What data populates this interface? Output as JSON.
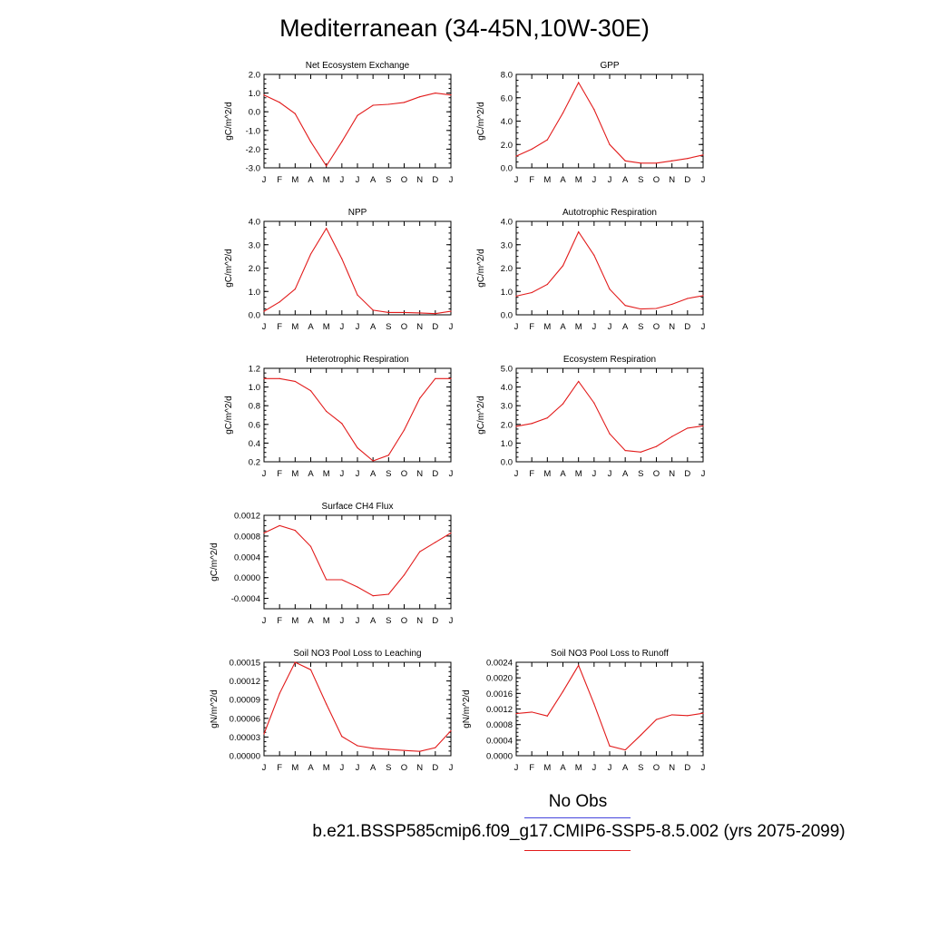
{
  "title": "Mediterranean (34-45N,10W-30E)",
  "legend": {
    "obs_label": "No Obs",
    "obs_color": "#4444dd",
    "case_label": "b.e21.BSSP585cmip6.f09_g17.CMIP6-SSP5-8.5.002 (yrs 2075-2099)",
    "case_color": "#e21b1b"
  },
  "line_color": "#e21b1b",
  "chart_data": [
    {
      "type": "line",
      "title": "Net Ecosystem Exchange",
      "ylabel": "gC/m^2/d",
      "categories": [
        "J",
        "F",
        "M",
        "A",
        "M",
        "J",
        "J",
        "A",
        "S",
        "O",
        "N",
        "D",
        "J"
      ],
      "yticks": [
        "2.0",
        "1.0",
        "0.0",
        "-1.0",
        "-2.0",
        "-3.0"
      ],
      "ylim": [
        -3.0,
        2.0
      ],
      "series": [
        {
          "values": [
            0.9,
            0.5,
            -0.1,
            -1.6,
            -2.9,
            -1.6,
            -0.2,
            0.35,
            0.4,
            0.5,
            0.8,
            1.0,
            0.9
          ]
        }
      ]
    },
    {
      "type": "line",
      "title": "GPP",
      "ylabel": "gC/m^2/d",
      "categories": [
        "J",
        "F",
        "M",
        "A",
        "M",
        "J",
        "J",
        "A",
        "S",
        "O",
        "N",
        "D",
        "J"
      ],
      "yticks": [
        "8.0",
        "6.0",
        "4.0",
        "2.0",
        "0.0"
      ],
      "ylim": [
        0.0,
        8.0
      ],
      "series": [
        {
          "values": [
            1.0,
            1.6,
            2.4,
            4.7,
            7.3,
            5.0,
            2.0,
            0.6,
            0.4,
            0.4,
            0.6,
            0.8,
            1.1
          ]
        }
      ]
    },
    {
      "type": "line",
      "title": "NPP",
      "ylabel": "gC/m^2/d",
      "categories": [
        "J",
        "F",
        "M",
        "A",
        "M",
        "J",
        "J",
        "A",
        "S",
        "O",
        "N",
        "D",
        "J"
      ],
      "yticks": [
        "4.0",
        "3.0",
        "2.0",
        "1.0",
        "0.0"
      ],
      "ylim": [
        0.0,
        4.0
      ],
      "series": [
        {
          "values": [
            0.15,
            0.55,
            1.1,
            2.6,
            3.7,
            2.4,
            0.85,
            0.2,
            0.1,
            0.1,
            0.08,
            0.05,
            0.15
          ]
        }
      ]
    },
    {
      "type": "line",
      "title": "Autotrophic Respiration",
      "ylabel": "gC/m^2/d",
      "categories": [
        "J",
        "F",
        "M",
        "A",
        "M",
        "J",
        "J",
        "A",
        "S",
        "O",
        "N",
        "D",
        "J"
      ],
      "yticks": [
        "4.0",
        "3.0",
        "2.0",
        "1.0",
        "0.0"
      ],
      "ylim": [
        0.0,
        4.0
      ],
      "series": [
        {
          "values": [
            0.8,
            0.95,
            1.3,
            2.1,
            3.55,
            2.55,
            1.1,
            0.4,
            0.25,
            0.27,
            0.45,
            0.7,
            0.82
          ]
        }
      ]
    },
    {
      "type": "line",
      "title": "Heterotrophic Respiration",
      "ylabel": "gC/m^2/d",
      "categories": [
        "J",
        "F",
        "M",
        "A",
        "M",
        "J",
        "J",
        "A",
        "S",
        "O",
        "N",
        "D",
        "J"
      ],
      "yticks": [
        "1.2",
        "1.0",
        "0.8",
        "0.6",
        "0.4",
        "0.2"
      ],
      "ylim": [
        0.2,
        1.2
      ],
      "series": [
        {
          "values": [
            1.09,
            1.09,
            1.06,
            0.96,
            0.74,
            0.61,
            0.35,
            0.21,
            0.27,
            0.54,
            0.88,
            1.09,
            1.09
          ]
        }
      ]
    },
    {
      "type": "line",
      "title": "Ecosystem Respiration",
      "ylabel": "gC/m^2/d",
      "categories": [
        "J",
        "F",
        "M",
        "A",
        "M",
        "J",
        "J",
        "A",
        "S",
        "O",
        "N",
        "D",
        "J"
      ],
      "yticks": [
        "5.0",
        "4.0",
        "3.0",
        "2.0",
        "1.0",
        "0.0"
      ],
      "ylim": [
        0.0,
        5.0
      ],
      "series": [
        {
          "values": [
            1.9,
            2.05,
            2.35,
            3.1,
            4.3,
            3.15,
            1.5,
            0.6,
            0.52,
            0.82,
            1.35,
            1.8,
            1.92
          ]
        }
      ]
    },
    {
      "type": "line",
      "title": "Surface CH4 Flux",
      "ylabel": "gC/m^2/d",
      "categories": [
        "J",
        "F",
        "M",
        "A",
        "M",
        "J",
        "J",
        "A",
        "S",
        "O",
        "N",
        "D",
        "J"
      ],
      "yticks": [
        "0.0012",
        "0.0008",
        "0.0004",
        "0.0000",
        "-0.0004"
      ],
      "ylim": [
        -0.0006,
        0.0012
      ],
      "series": [
        {
          "values": [
            0.00086,
            0.001,
            0.00091,
            0.0006,
            -4e-05,
            -4e-05,
            -0.00018,
            -0.00035,
            -0.00032,
            5e-05,
            0.0005,
            0.00068,
            0.00086
          ]
        }
      ]
    },
    {
      "type": "line",
      "title": "Soil NO3 Pool Loss to Leaching",
      "ylabel": "gN/m^2/d",
      "categories": [
        "J",
        "F",
        "M",
        "A",
        "M",
        "J",
        "J",
        "A",
        "S",
        "O",
        "N",
        "D",
        "J"
      ],
      "yticks": [
        "0.00015",
        "0.00012",
        "0.00009",
        "0.00006",
        "0.00003",
        "0.00000"
      ],
      "ylim": [
        0.0,
        0.00015
      ],
      "series": [
        {
          "values": [
            3.5e-05,
            0.0001,
            0.00015,
            0.000138,
            8.3e-05,
            3.1e-05,
            1.6e-05,
            1.2e-05,
            1e-05,
            8.5e-06,
            7e-06,
            1.3e-05,
            4e-05
          ]
        }
      ]
    },
    {
      "type": "line",
      "title": "Soil NO3 Pool Loss to Runoff",
      "ylabel": "gN/m^2/d",
      "categories": [
        "J",
        "F",
        "M",
        "A",
        "M",
        "J",
        "J",
        "A",
        "S",
        "O",
        "N",
        "D",
        "J"
      ],
      "yticks": [
        "0.0024",
        "0.0020",
        "0.0016",
        "0.0012",
        "0.0008",
        "0.0004",
        "0.0000"
      ],
      "ylim": [
        0.0,
        0.0024
      ],
      "series": [
        {
          "values": [
            0.00108,
            0.00112,
            0.00102,
            0.00165,
            0.00232,
            0.00133,
            0.00025,
            0.00015,
            0.00053,
            0.00093,
            0.00105,
            0.00103,
            0.00109
          ]
        }
      ]
    }
  ]
}
